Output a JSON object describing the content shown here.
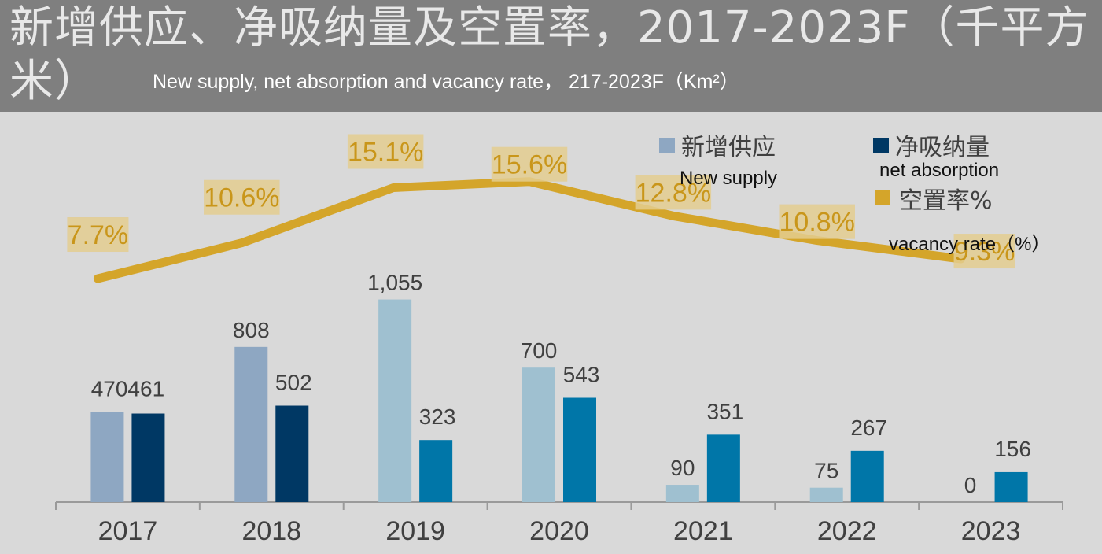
{
  "title": {
    "zh": "新增供应、净吸纳量及空置率，2017-2023F（千平方米）",
    "en": "New supply, net absorption and vacancy rate， 217-2023F（Km²）"
  },
  "legend": {
    "new_supply": {
      "zh": "新增供应",
      "en": "New supply"
    },
    "net_absorption": {
      "zh": "净吸纳量",
      "en": "net absorption"
    },
    "vacancy": {
      "zh": "空置率%",
      "en": "vacancy rate（%）"
    }
  },
  "colors": {
    "supply_early": "#8ea7c2",
    "supply_late": "#9fc0d0",
    "absorption_early": "#003864",
    "absorption_late": "#0076a8",
    "vacancy_line": "#d4a52a",
    "vacancy_label_bg": "#e3cc8f",
    "vacancy_label_text": "#c9961a"
  },
  "chart_data": {
    "type": "bar",
    "categories": [
      "2017",
      "2018",
      "2019",
      "2020",
      "2021",
      "2022",
      "2023"
    ],
    "series": [
      {
        "name": "新增供应",
        "values": [
          470,
          808,
          1055,
          700,
          90,
          75,
          0
        ],
        "labels": [
          "470",
          "808",
          "1,055",
          "700",
          "90",
          "75",
          "0"
        ]
      },
      {
        "name": "净吸纳量",
        "values": [
          461,
          502,
          323,
          543,
          351,
          267,
          156
        ],
        "labels": [
          "461",
          "502",
          "323",
          "543",
          "351",
          "267",
          "156"
        ]
      },
      {
        "name": "空置率%",
        "type": "line",
        "values": [
          7.7,
          10.6,
          15.1,
          15.6,
          12.8,
          10.8,
          9.3
        ],
        "labels": [
          "7.7%",
          "10.6%",
          "15.1%",
          "15.6%",
          "12.8%",
          "10.8%",
          "9.3%"
        ]
      }
    ],
    "bar_ylim": [
      0,
      1300
    ],
    "line_ylim": [
      -16,
      20
    ],
    "grid": false
  }
}
